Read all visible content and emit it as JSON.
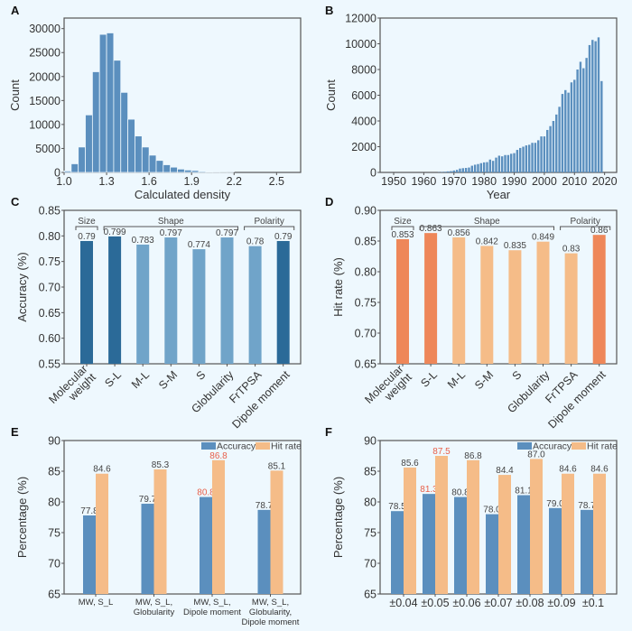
{
  "chart_data": [
    {
      "panel": "A",
      "type": "bar",
      "xlabel": "Calculated density",
      "ylabel": "Count",
      "xlim": [
        1.0,
        2.67
      ],
      "ylim": [
        0,
        32200
      ],
      "xticks": [
        "1.0",
        "1.3",
        "1.6",
        "1.9",
        "2.2",
        "2.5"
      ],
      "yticks": [
        "0",
        "5000",
        "10000",
        "15000",
        "20000",
        "25000",
        "30000"
      ],
      "bin_width": 0.05,
      "x": [
        1.0,
        1.05,
        1.1,
        1.15,
        1.2,
        1.25,
        1.3,
        1.35,
        1.4,
        1.45,
        1.5,
        1.55,
        1.6,
        1.65,
        1.7,
        1.75,
        1.8,
        1.85,
        1.9,
        1.95,
        2.0,
        2.05,
        2.1,
        2.15
      ],
      "values": [
        300,
        1800,
        5300,
        12000,
        21000,
        28800,
        29100,
        23400,
        16700,
        11100,
        7600,
        5300,
        3600,
        2500,
        1600,
        1100,
        700,
        500,
        400,
        200,
        150,
        80,
        40,
        20
      ],
      "color": "#5b8fbe"
    },
    {
      "panel": "B",
      "type": "bar",
      "xlabel": "Year",
      "ylabel": "Count",
      "xlim": [
        1945.5,
        2024
      ],
      "ylim": [
        0,
        12000
      ],
      "xticks": [
        "1950",
        "1960",
        "1970",
        "1980",
        "1990",
        "2000",
        "2010",
        "2020"
      ],
      "yticks": [
        "0",
        "2000",
        "4000",
        "6000",
        "8000",
        "10000",
        "12000"
      ],
      "x": [
        1965,
        1966,
        1967,
        1968,
        1969,
        1970,
        1971,
        1972,
        1973,
        1974,
        1975,
        1976,
        1977,
        1978,
        1979,
        1980,
        1981,
        1982,
        1983,
        1984,
        1985,
        1986,
        1987,
        1988,
        1989,
        1990,
        1991,
        1992,
        1993,
        1994,
        1995,
        1996,
        1997,
        1998,
        1999,
        2000,
        2001,
        2002,
        2003,
        2004,
        2005,
        2006,
        2007,
        2008,
        2009,
        2010,
        2011,
        2012,
        2013,
        2014,
        2015,
        2016,
        2017,
        2018,
        2019
      ],
      "values": [
        20,
        30,
        50,
        80,
        100,
        150,
        200,
        300,
        330,
        350,
        380,
        520,
        600,
        650,
        720,
        780,
        800,
        1000,
        900,
        1150,
        1300,
        1250,
        1350,
        1350,
        1450,
        1500,
        1750,
        1900,
        2000,
        2100,
        2150,
        2300,
        2300,
        2500,
        2800,
        2800,
        3300,
        3600,
        4000,
        4500,
        5100,
        6100,
        6400,
        6200,
        7000,
        7200,
        8000,
        8600,
        8100,
        8900,
        9900,
        10300,
        10200,
        10500,
        7100
      ],
      "color": "#5b8fbe"
    },
    {
      "panel": "C",
      "type": "bar",
      "ylabel": "Accuracy (%)",
      "ylim": [
        0.55,
        0.85
      ],
      "yticks": [
        "0.55",
        "0.60",
        "0.65",
        "0.70",
        "0.75",
        "0.80",
        "0.85"
      ],
      "categories": [
        "Molecular weight",
        "S-L",
        "M-L",
        "S-M",
        "S",
        "Globularity",
        "FrTPSA",
        "Dipole moment"
      ],
      "values": [
        0.79,
        0.799,
        0.783,
        0.797,
        0.774,
        0.797,
        0.78,
        0.79
      ],
      "labels": [
        "0.79",
        "0.799",
        "0.783",
        "0.797",
        "0.774",
        "0.797",
        "0.78",
        "0.79"
      ],
      "highlight": [
        true,
        true,
        false,
        false,
        false,
        false,
        false,
        true
      ],
      "colors": {
        "highlight": "#2b6a98",
        "normal": "#70a4c9"
      },
      "groups": [
        {
          "label": "Size",
          "from": 0,
          "to": 0
        },
        {
          "label": "Shape",
          "from": 1,
          "to": 5
        },
        {
          "label": "Polarity",
          "from": 6,
          "to": 7
        }
      ]
    },
    {
      "panel": "D",
      "type": "bar",
      "ylabel": "Hit rate (%)",
      "ylim": [
        0.65,
        0.9
      ],
      "yticks": [
        "0.65",
        "0.70",
        "0.75",
        "0.80",
        "0.85",
        "0.90"
      ],
      "categories": [
        "Molecular weight",
        "S-L",
        "M-L",
        "S-M",
        "S",
        "Globularity",
        "FrTPSA",
        "Dipole moment"
      ],
      "values": [
        0.853,
        0.863,
        0.856,
        0.842,
        0.835,
        0.849,
        0.83,
        0.86
      ],
      "labels": [
        "0.853",
        "0.863",
        "0.856",
        "0.842",
        "0.835",
        "0.849",
        "0.83",
        "0.86"
      ],
      "highlight": [
        true,
        true,
        false,
        false,
        false,
        false,
        false,
        true
      ],
      "colors": {
        "highlight": "#ee8759",
        "normal": "#f5bc88"
      },
      "groups": [
        {
          "label": "Size",
          "from": 0,
          "to": 0
        },
        {
          "label": "Shape",
          "from": 1,
          "to": 5
        },
        {
          "label": "Polarity",
          "from": 6,
          "to": 7
        }
      ]
    },
    {
      "panel": "E",
      "type": "bar",
      "ylabel": "Percentage (%)",
      "ylim": [
        65,
        90
      ],
      "yticks": [
        "65",
        "70",
        "75",
        "80",
        "85",
        "90"
      ],
      "categories": [
        "MW, S_L",
        "MW, S_L,\nGlobularity",
        "MW, S_L,\nDipole moment",
        "MW, S_L,\nGlobularity,\nDipole moment"
      ],
      "series": [
        {
          "name": "Accuracy",
          "values": [
            77.8,
            79.7,
            80.8,
            78.7
          ],
          "labels": [
            "77.8",
            "79.7",
            "80.8",
            "78.7"
          ],
          "best": [
            false,
            false,
            true,
            false
          ],
          "color": "#5b8fbe"
        },
        {
          "name": "Hit rate",
          "values": [
            84.6,
            85.3,
            86.8,
            85.1
          ],
          "labels": [
            "84.6",
            "85.3",
            "86.8",
            "85.1"
          ],
          "best": [
            false,
            false,
            true,
            false
          ],
          "color": "#f5bc88"
        }
      ],
      "highlight_color": "#e8604a",
      "legend": "top-right"
    },
    {
      "panel": "F",
      "type": "bar",
      "ylabel": "Percentage (%)",
      "ylim": [
        65,
        90
      ],
      "yticks": [
        "65",
        "70",
        "75",
        "80",
        "85",
        "90"
      ],
      "categories": [
        "±0.04",
        "±0.05",
        "±0.06",
        "±0.07",
        "±0.08",
        "±0.09",
        "±0.1"
      ],
      "series": [
        {
          "name": "Accuracy",
          "values": [
            78.5,
            81.3,
            80.8,
            78.0,
            81.1,
            79.0,
            78.7
          ],
          "labels": [
            "78.5",
            "81.3",
            "80.8",
            "78.0",
            "81.1",
            "79.0",
            "78.7"
          ],
          "best": [
            false,
            true,
            false,
            false,
            false,
            false,
            false
          ],
          "color": "#5b8fbe"
        },
        {
          "name": "Hit rate",
          "values": [
            85.6,
            87.5,
            86.8,
            84.4,
            87.0,
            84.6,
            84.6
          ],
          "labels": [
            "85.6",
            "87.5",
            "86.8",
            "84.4",
            "87.0",
            "84.6",
            "84.6"
          ],
          "best": [
            false,
            true,
            false,
            false,
            false,
            false,
            false
          ],
          "color": "#f5bc88"
        }
      ],
      "highlight_color": "#e8604a",
      "legend": "top-right"
    }
  ]
}
